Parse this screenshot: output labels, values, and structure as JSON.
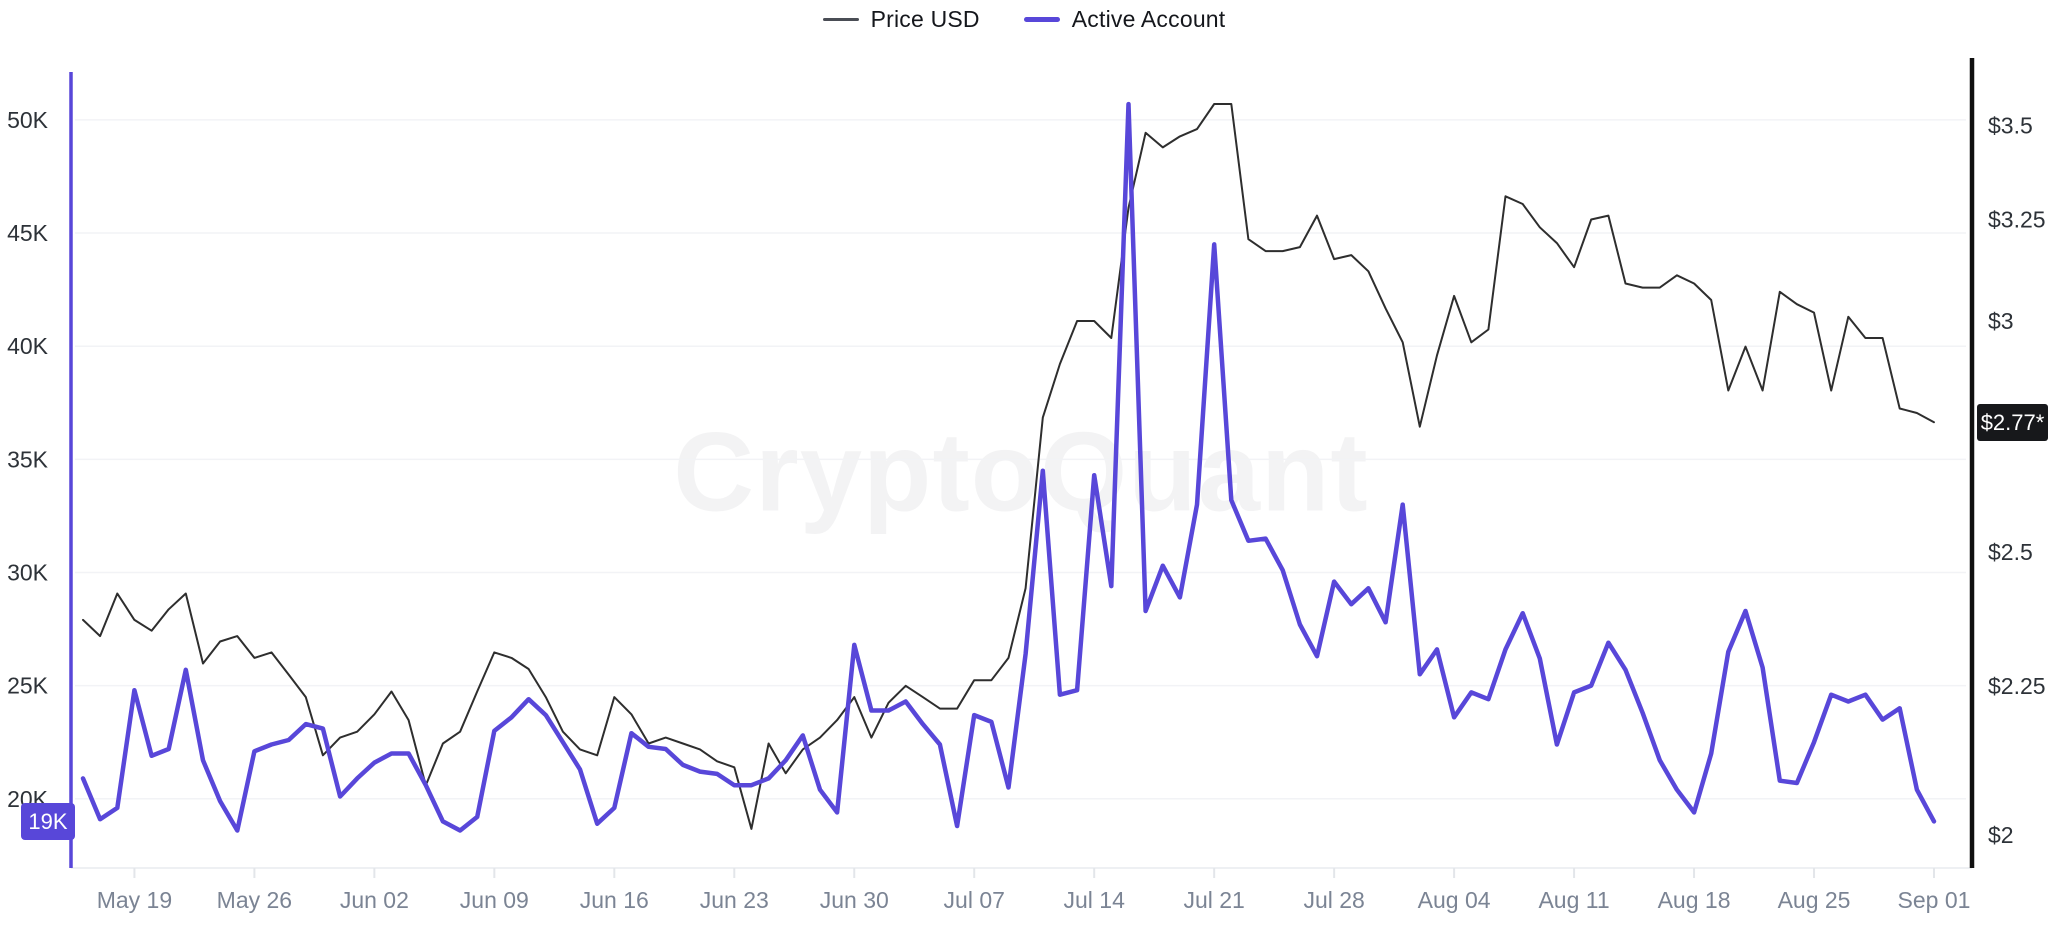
{
  "legend": {
    "price_label": "Price USD",
    "active_label": "Active Account"
  },
  "watermark": "CryptoQuant",
  "badges": {
    "left_current_active": "19K",
    "right_current_price": "$2.77*"
  },
  "chart_data": {
    "type": "line",
    "title": "",
    "grid": "horizontal",
    "legend_position": "top-center",
    "x": [
      "May 16",
      "May 17",
      "May 18",
      "May 19",
      "May 20",
      "May 21",
      "May 22",
      "May 23",
      "May 24",
      "May 25",
      "May 26",
      "May 27",
      "May 28",
      "May 29",
      "May 30",
      "May 31",
      "Jun 01",
      "Jun 02",
      "Jun 03",
      "Jun 04",
      "Jun 05",
      "Jun 06",
      "Jun 07",
      "Jun 08",
      "Jun 09",
      "Jun 10",
      "Jun 11",
      "Jun 12",
      "Jun 13",
      "Jun 14",
      "Jun 15",
      "Jun 16",
      "Jun 17",
      "Jun 18",
      "Jun 19",
      "Jun 20",
      "Jun 21",
      "Jun 22",
      "Jun 23",
      "Jun 24",
      "Jun 25",
      "Jun 26",
      "Jun 27",
      "Jun 28",
      "Jun 29",
      "Jun 30",
      "Jul 01",
      "Jul 02",
      "Jul 03",
      "Jul 04",
      "Jul 05",
      "Jul 06",
      "Jul 07",
      "Jul 08",
      "Jul 09",
      "Jul 10",
      "Jul 11",
      "Jul 12",
      "Jul 13",
      "Jul 14",
      "Jul 15",
      "Jul 16",
      "Jul 17",
      "Jul 18",
      "Jul 19",
      "Jul 20",
      "Jul 21",
      "Jul 22",
      "Jul 23",
      "Jul 24",
      "Jul 25",
      "Jul 26",
      "Jul 27",
      "Jul 28",
      "Jul 29",
      "Jul 30",
      "Jul 31",
      "Aug 01",
      "Aug 02",
      "Aug 03",
      "Aug 04",
      "Aug 05",
      "Aug 06",
      "Aug 07",
      "Aug 08",
      "Aug 09",
      "Aug 10",
      "Aug 11",
      "Aug 12",
      "Aug 13",
      "Aug 14",
      "Aug 15",
      "Aug 16",
      "Aug 17",
      "Aug 18",
      "Aug 19",
      "Aug 20",
      "Aug 21",
      "Aug 22",
      "Aug 23",
      "Aug 24",
      "Aug 25",
      "Aug 26",
      "Aug 27",
      "Aug 28",
      "Aug 29",
      "Aug 30",
      "Aug 31",
      "Sep 01"
    ],
    "series": [
      {
        "name": "Price USD",
        "axis": "right",
        "unit": "USD",
        "color": "#2e2e2e",
        "line_width": 2,
        "values": [
          2.37,
          2.34,
          2.42,
          2.37,
          2.35,
          2.39,
          2.42,
          2.29,
          2.33,
          2.34,
          2.3,
          2.31,
          2.27,
          2.23,
          2.13,
          2.16,
          2.17,
          2.2,
          2.24,
          2.19,
          2.08,
          2.15,
          2.17,
          2.24,
          2.31,
          2.3,
          2.28,
          2.23,
          2.17,
          2.14,
          2.13,
          2.23,
          2.2,
          2.15,
          2.16,
          2.15,
          2.14,
          2.12,
          2.11,
          2.01,
          2.15,
          2.1,
          2.14,
          2.16,
          2.19,
          2.23,
          2.16,
          2.22,
          2.25,
          2.23,
          2.21,
          2.21,
          2.26,
          2.26,
          2.3,
          2.43,
          2.78,
          2.9,
          3.0,
          3.0,
          2.96,
          3.28,
          3.48,
          3.44,
          3.47,
          3.49,
          3.56,
          3.56,
          3.2,
          3.17,
          3.17,
          3.18,
          3.26,
          3.15,
          3.16,
          3.12,
          3.03,
          2.95,
          2.76,
          2.92,
          3.06,
          2.95,
          2.98,
          3.31,
          3.29,
          3.23,
          3.19,
          3.13,
          3.25,
          3.26,
          3.09,
          3.08,
          3.08,
          3.11,
          3.09,
          3.05,
          2.84,
          2.94,
          2.84,
          3.07,
          3.04,
          3.02,
          2.84,
          3.01,
          2.96,
          2.96,
          2.8,
          2.79,
          2.77
        ]
      },
      {
        "name": "Active Account",
        "axis": "left",
        "unit": "K accounts",
        "color": "#5847d9",
        "line_width": 4.5,
        "values": [
          20.9,
          19.1,
          19.6,
          24.8,
          21.9,
          22.2,
          25.7,
          21.7,
          19.9,
          18.6,
          22.1,
          22.4,
          22.6,
          23.3,
          23.1,
          20.1,
          20.9,
          21.6,
          22.0,
          22.0,
          20.6,
          19.0,
          18.6,
          19.2,
          23.0,
          23.6,
          24.4,
          23.7,
          22.5,
          21.3,
          18.9,
          19.6,
          22.9,
          22.3,
          22.2,
          21.5,
          21.2,
          21.1,
          20.6,
          20.6,
          20.9,
          21.7,
          22.8,
          20.4,
          19.4,
          26.8,
          23.9,
          23.9,
          24.3,
          23.3,
          22.4,
          18.8,
          23.7,
          23.4,
          20.5,
          26.4,
          34.5,
          24.6,
          24.8,
          34.3,
          29.4,
          50.7,
          28.3,
          30.3,
          28.9,
          33.0,
          44.5,
          33.2,
          31.4,
          31.5,
          30.1,
          27.7,
          26.3,
          29.6,
          28.6,
          29.3,
          27.8,
          33.0,
          25.5,
          26.6,
          23.6,
          24.7,
          24.4,
          26.6,
          28.2,
          26.2,
          22.4,
          24.7,
          25.0,
          26.9,
          25.7,
          23.8,
          21.7,
          20.4,
          19.4,
          22.0,
          26.5,
          28.3,
          25.8,
          20.8,
          20.7,
          22.5,
          24.6,
          24.3,
          24.6,
          23.5,
          24.0,
          20.4,
          19.0
        ]
      }
    ],
    "left_axis": {
      "scale": "linear",
      "color": "#5847d9",
      "current_value_label": "19K",
      "ticks": [
        {
          "label": "50K",
          "value": 50
        },
        {
          "label": "45K",
          "value": 45
        },
        {
          "label": "40K",
          "value": 40
        },
        {
          "label": "35K",
          "value": 35
        },
        {
          "label": "30K",
          "value": 30
        },
        {
          "label": "25K",
          "value": 25
        },
        {
          "label": "20K",
          "value": 20
        }
      ]
    },
    "right_axis": {
      "scale": "log",
      "color": "#101010",
      "current_value_label": "$2.77*",
      "ticks": [
        {
          "label": "$3.5",
          "value": 3.5
        },
        {
          "label": "$3.25",
          "value": 3.25
        },
        {
          "label": "$3",
          "value": 3.0
        },
        {
          "label": "$2.5",
          "value": 2.5
        },
        {
          "label": "$2.25",
          "value": 2.25
        },
        {
          "label": "$2",
          "value": 2.0
        }
      ]
    },
    "x_ticks": [
      {
        "label": "May 19",
        "index": 3
      },
      {
        "label": "May 26",
        "index": 10
      },
      {
        "label": "Jun 02",
        "index": 17
      },
      {
        "label": "Jun 09",
        "index": 24
      },
      {
        "label": "Jun 16",
        "index": 31
      },
      {
        "label": "Jun 23",
        "index": 38
      },
      {
        "label": "Jun 30",
        "index": 45
      },
      {
        "label": "Jul 07",
        "index": 52
      },
      {
        "label": "Jul 14",
        "index": 59
      },
      {
        "label": "Jul 21",
        "index": 66
      },
      {
        "label": "Jul 28",
        "index": 73
      },
      {
        "label": "Aug 04",
        "index": 80
      },
      {
        "label": "Aug 11",
        "index": 87
      },
      {
        "label": "Aug 18",
        "index": 94
      },
      {
        "label": "Aug 25",
        "index": 101
      },
      {
        "label": "Sep 01",
        "index": 108
      }
    ]
  }
}
